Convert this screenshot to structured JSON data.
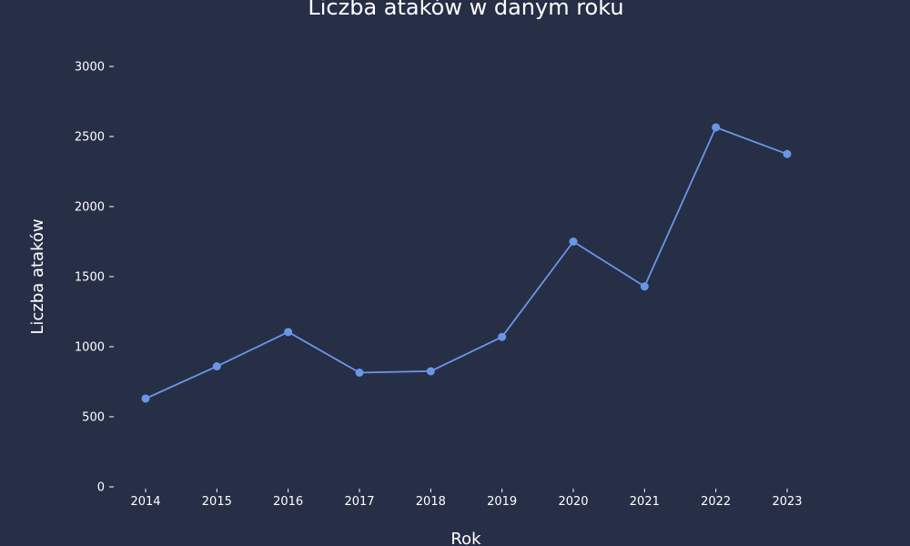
{
  "colors": {
    "background": "#272f47",
    "series": "#6a96e8",
    "text": "#ffffff"
  },
  "chart_data": {
    "type": "line",
    "title": "Liczba ataków w danym roku",
    "xlabel": "Rok",
    "ylabel": "Liczba ataków",
    "x": [
      2014,
      2015,
      2016,
      2017,
      2018,
      2019,
      2020,
      2021,
      2022,
      2023
    ],
    "series": [
      {
        "values": [
          630,
          860,
          1105,
          815,
          825,
          1070,
          1750,
          1430,
          2565,
          2375
        ]
      }
    ],
    "ylim": [
      0,
      3000
    ],
    "yticks": [
      0,
      500,
      1000,
      1500,
      2000,
      2500,
      3000
    ],
    "grid": false,
    "markers": true
  }
}
